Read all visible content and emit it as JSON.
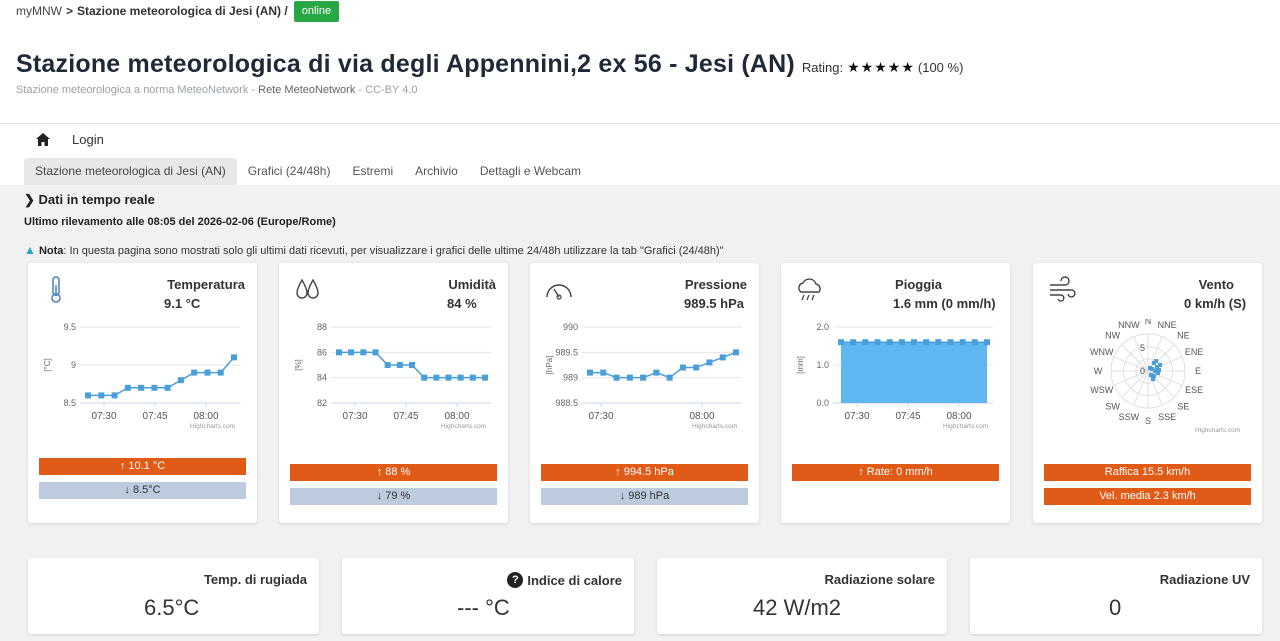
{
  "breadcrumb": {
    "app": "myMNW",
    "sep": ">",
    "current": "Stazione meteorologica di Jesi (AN) /",
    "status": "online"
  },
  "header": {
    "title": "Stazione meteorologica di via degli Appennini,2 ex 56 - Jesi (AN)",
    "rating_label": "Rating:",
    "stars": "★★★★★",
    "rating_pct": "(100 %)",
    "subtitle_a": "Stazione meteorologica a norma MeteoNetwork - ",
    "subtitle_b": "Rete MeteoNetwork",
    "subtitle_c": " - CC-BY 4.0"
  },
  "nav": {
    "login": "Login"
  },
  "tabs": [
    "Stazione meteorologica di Jesi (AN)",
    "Grafici (24/48h)",
    "Estremi",
    "Archivio",
    "Dettagli e Webcam"
  ],
  "realtime": {
    "heading": "Dati in tempo reale",
    "last_update": "Ultimo rilevamento alle 08:05 del 2026-02-06 (Europe/Rome)",
    "note_label": "Nota",
    "note_text": ": In questa pagina sono mostrati solo gli ultimi dati ricevuti, per visualizzare i grafici delle ultime 24/48h utilizzare la tab \"Grafici (24/48h)\""
  },
  "colors": {
    "max": "#e05a18",
    "min": "#bccbdd",
    "series": "#4a9fd8",
    "online": "#28a745"
  },
  "cards": [
    {
      "id": "temp",
      "icon": "thermometer-icon",
      "title": "Temperatura",
      "value": "9.1 °C",
      "max": "↑ 10.1 °C",
      "min": "↓ 8.5°C"
    },
    {
      "id": "hum",
      "icon": "humidity-icon",
      "title": "Umidità",
      "value": "84 %",
      "max": "↑ 88 %",
      "min": "↓ 79 %"
    },
    {
      "id": "press",
      "icon": "gauge-icon",
      "title": "Pressione",
      "value": "989.5 hPa",
      "max": "↑ 994.5 hPa",
      "min": "↓ 989 hPa"
    },
    {
      "id": "rain",
      "icon": "rain-cloud-icon",
      "title": "Pioggia",
      "value": "1.6 mm (0 mm/h)",
      "max": "↑ Rate: 0 mm/h"
    },
    {
      "id": "wind",
      "icon": "wind-icon",
      "title": "Vento",
      "value": "0 km/h (S)",
      "gust": "Raffica 15.5 km/h",
      "avg": "Vel. media 2.3 km/h"
    }
  ],
  "credit": "Highcharts.com",
  "chart_data": [
    {
      "type": "line",
      "name": "temp",
      "ylabel": "[°C]",
      "ylim": [
        8.5,
        9.5
      ],
      "yticks": [
        "9.5",
        "9",
        "8.5"
      ],
      "xticks": [
        "07:30",
        "07:45",
        "08:00"
      ],
      "values": [
        8.6,
        8.6,
        8.6,
        8.7,
        8.7,
        8.7,
        8.7,
        8.8,
        8.9,
        8.9,
        8.9,
        9.1
      ]
    },
    {
      "type": "line",
      "name": "hum",
      "ylabel": "[%]",
      "ylim": [
        82,
        88
      ],
      "yticks": [
        "88",
        "86",
        "84",
        "82"
      ],
      "xticks": [
        "07:30",
        "07:45",
        "08:00"
      ],
      "values": [
        86,
        86,
        86,
        86,
        85,
        85,
        85,
        84,
        84,
        84,
        84,
        84,
        84
      ]
    },
    {
      "type": "line",
      "name": "press",
      "ylabel": "[hPa]",
      "ylim": [
        988.5,
        990
      ],
      "yticks": [
        "990",
        "989.5",
        "989",
        "988.5"
      ],
      "xticks": [
        "07:30",
        "08:00"
      ],
      "values": [
        989.1,
        989.1,
        989.0,
        989.0,
        989.0,
        989.1,
        989.0,
        989.2,
        989.2,
        989.3,
        989.4,
        989.5
      ]
    },
    {
      "type": "area",
      "name": "rain",
      "ylabel": "[mm]",
      "ylim": [
        0,
        2
      ],
      "yticks": [
        "2.0",
        "1.0",
        "0.0"
      ],
      "xticks": [
        "07:30",
        "07:45",
        "08:00"
      ],
      "values": [
        1.6,
        1.6,
        1.6,
        1.6,
        1.6,
        1.6,
        1.6,
        1.6,
        1.6,
        1.6,
        1.6,
        1.6,
        1.6
      ]
    },
    {
      "type": "scatter",
      "name": "wind-rose",
      "directions": [
        "N",
        "NNE",
        "NE",
        "ENE",
        "E",
        "ESE",
        "SE",
        "SSE",
        "S",
        "SSW",
        "SW",
        "WSW",
        "W",
        "WNW",
        "NW",
        "NNW"
      ],
      "rlabels": [
        "5",
        "0"
      ]
    }
  ],
  "bottom": [
    {
      "title": "Temp. di rugiada",
      "value": "6.5°C"
    },
    {
      "title": "Indice di calore",
      "value": "--- °C",
      "help": "?"
    },
    {
      "title": "Radiazione solare",
      "value": "42 W/m2"
    },
    {
      "title": "Radiazione UV",
      "value": "0"
    }
  ]
}
